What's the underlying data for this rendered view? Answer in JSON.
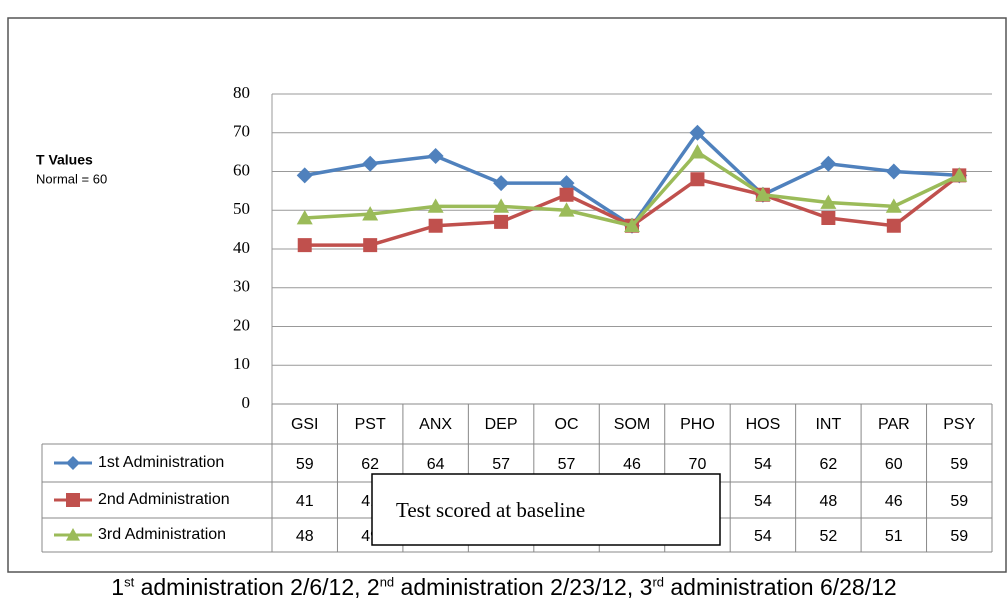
{
  "chart_data": {
    "type": "line",
    "y_label": "T Values",
    "y_note": "Normal = 60",
    "categories": [
      "GSI",
      "PST",
      "ANX",
      "DEP",
      "OC",
      "SOM",
      "PHO",
      "HOS",
      "INT",
      "PAR",
      "PSY"
    ],
    "series": [
      {
        "name": "1st Administration",
        "color": "#4f81bd",
        "marker": "diamond",
        "values": [
          59,
          62,
          64,
          57,
          57,
          46,
          70,
          54,
          62,
          60,
          59
        ]
      },
      {
        "name": "2nd Administration",
        "color": "#c0504d",
        "marker": "square",
        "values": [
          41,
          41,
          46,
          47,
          54,
          46,
          58,
          54,
          48,
          46,
          59
        ]
      },
      {
        "name": "3rd Administration",
        "color": "#9bbb59",
        "marker": "triangle",
        "values": [
          48,
          49,
          51,
          51,
          50,
          46,
          65,
          54,
          52,
          51,
          59
        ]
      }
    ],
    "ylim": [
      0,
      80
    ],
    "yticks": [
      0,
      10,
      20,
      30,
      40,
      50,
      60,
      70,
      80
    ],
    "grid": true,
    "annotation": "Test scored at baseline"
  },
  "footnote": [
    {
      "text": "1",
      "sup": false
    },
    {
      "text": "st",
      "sup": true
    },
    {
      "text": " administration 2/6/12, 2",
      "sup": false
    },
    {
      "text": "nd",
      "sup": true
    },
    {
      "text": " administration 2/23/12, 3",
      "sup": false
    },
    {
      "text": "rd",
      "sup": true
    },
    {
      "text": " administration 6/28/12",
      "sup": false
    }
  ]
}
